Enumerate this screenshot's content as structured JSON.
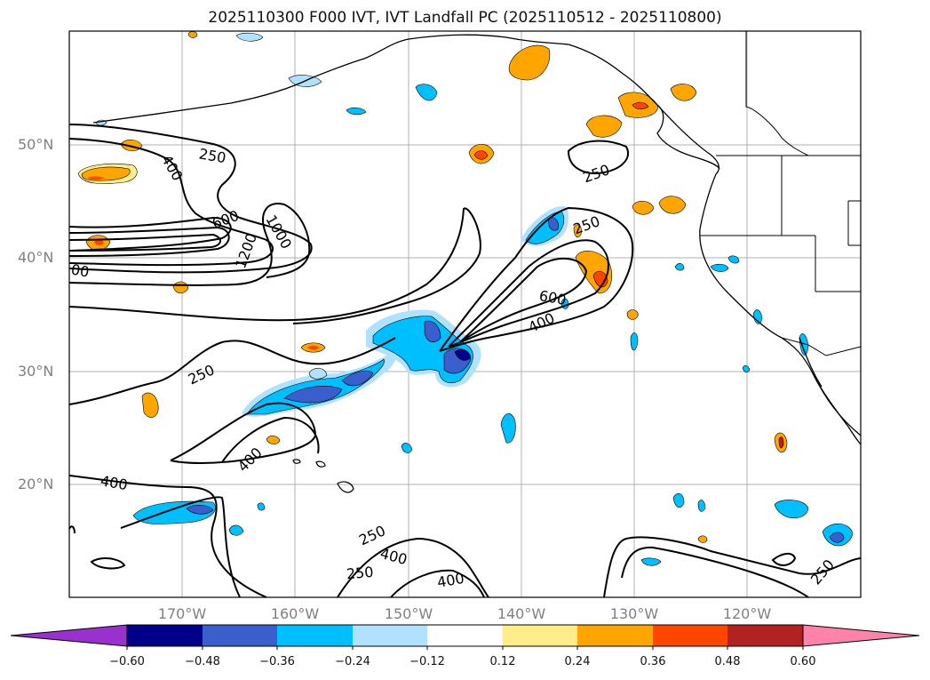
{
  "title": "2025110300 F000 IVT, IVT Landfall PC (2025110512 - 2025110800)",
  "lat_labels": [
    "50°N",
    "40°N",
    "30°N",
    "20°N"
  ],
  "lon_labels": [
    "170°W",
    "160°W",
    "150°W",
    "140°W",
    "130°W",
    "120°W"
  ],
  "colorbar": {
    "ticks": [
      "−0.60",
      "−0.48",
      "−0.36",
      "−0.24",
      "−0.12",
      "0.12",
      "0.24",
      "0.36",
      "0.48",
      "0.60"
    ],
    "colors": [
      "#9932cc",
      "#00008b",
      "#3a5fcd",
      "#00bfff",
      "#b0e2ff",
      "#ffffff",
      "#ffec8b",
      "#ffa500",
      "#ff4500",
      "#b22222",
      "#ff82ab"
    ]
  },
  "contour_labels": {
    "c250_a": "250",
    "c400_a": "400",
    "c600_a": "600",
    "c1200": "1200",
    "c1000": "1000",
    "c00": "00",
    "c250_b": "250",
    "c250_c": "250",
    "c600_b": "600",
    "c400_b": "400",
    "c250_d": "250",
    "c400_c": "400",
    "c400_d": "400",
    "c250_e": "250",
    "c400_e": "400",
    "c250_f": "250",
    "c250_g": "250",
    "c400_f": "400"
  }
}
